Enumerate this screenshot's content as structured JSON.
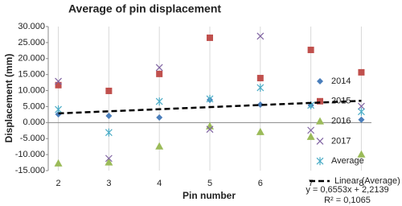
{
  "chart_data": {
    "type": "scatter",
    "title": "Average of pin displacement",
    "x_label": "Pin number",
    "y_label": "Displacement (mm)",
    "x": [
      2,
      3,
      4,
      5,
      6,
      7,
      8
    ],
    "xlim": [
      1.8,
      8.2
    ],
    "xticks": [
      2,
      3,
      4,
      5,
      6,
      7,
      8
    ],
    "ylim": [
      -15,
      30
    ],
    "yticks": [
      {
        "value": -15,
        "label": "-15.000"
      },
      {
        "value": -10,
        "label": "-10.000"
      },
      {
        "value": -5,
        "label": "-5.000"
      },
      {
        "value": 0,
        "label": "0.000"
      },
      {
        "value": 5,
        "label": "5.000"
      },
      {
        "value": 10,
        "label": "10.000"
      },
      {
        "value": 15,
        "label": "15.000"
      },
      {
        "value": 20,
        "label": "20.000"
      },
      {
        "value": 25,
        "label": "25.000"
      },
      {
        "value": 30,
        "label": "30.000"
      }
    ],
    "grid": "x",
    "legend": "right",
    "series": [
      {
        "name": "2014",
        "color": "#4a7ebb",
        "marker": "diamond",
        "values": [
          2.6,
          2.1,
          1.6,
          7.1,
          5.6,
          5.4,
          0.9
        ]
      },
      {
        "name": "2015",
        "color": "#c0504d",
        "marker": "square",
        "values": [
          11.7,
          9.9,
          15.2,
          26.5,
          13.9,
          22.7,
          15.7
        ]
      },
      {
        "name": "2016",
        "color": "#9bbb59",
        "marker": "triangle",
        "values": [
          -12.7,
          -12.4,
          -7.4,
          -1.1,
          -2.9,
          -4.4,
          -9.9
        ]
      },
      {
        "name": "2017",
        "color": "#8064a2",
        "marker": "x",
        "values": [
          12.9,
          -11.2,
          17.2,
          -2.1,
          27.0,
          -2.4,
          5.1
        ]
      },
      {
        "name": "Average",
        "color": "#4bacc6",
        "marker": "asterisk",
        "values": [
          4.1,
          -3.1,
          6.6,
          7.4,
          10.9,
          5.4,
          3.4
        ]
      }
    ],
    "trendline": {
      "name": "Linear (Average)",
      "color": "#000000",
      "slope": 0.6553,
      "intercept": 2.2139,
      "equation": "y = 0,6553x + 2,2139",
      "r2_label": "R² = 0,1065"
    }
  }
}
